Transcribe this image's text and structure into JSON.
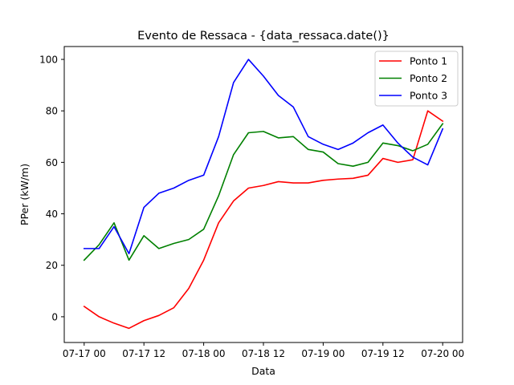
{
  "chart_data": {
    "type": "line",
    "title": "Evento de Ressaca - {data_ressaca.date()}",
    "xlabel": "Data",
    "ylabel": "PPer (kW/m)",
    "x_tick_labels": [
      "07-17 00",
      "07-17 12",
      "07-18 00",
      "07-18 12",
      "07-19 00",
      "07-19 12",
      "07-20 00"
    ],
    "y_ticks": [
      0,
      20,
      40,
      60,
      80,
      100
    ],
    "xlim": [
      "07-16 20",
      "07-20 04"
    ],
    "ylim": [
      -10,
      105
    ],
    "grid": false,
    "legend_position": "top-right",
    "x": [
      "07-17 00",
      "07-17 03",
      "07-17 06",
      "07-17 09",
      "07-17 12",
      "07-17 15",
      "07-17 18",
      "07-17 21",
      "07-18 00",
      "07-18 03",
      "07-18 06",
      "07-18 09",
      "07-18 12",
      "07-18 15",
      "07-18 18",
      "07-18 21",
      "07-19 00",
      "07-19 03",
      "07-19 06",
      "07-19 09",
      "07-19 12",
      "07-19 15",
      "07-19 18",
      "07-19 21",
      "07-20 00"
    ],
    "series": [
      {
        "name": "Ponto 1",
        "color": "#ff0000",
        "values": [
          4,
          0,
          -2.5,
          -4.5,
          -1.5,
          0.5,
          3.5,
          11,
          22,
          36.5,
          45,
          50,
          51,
          52.5,
          52,
          52,
          53,
          53.5,
          53.8,
          55,
          61.5,
          60,
          61,
          80,
          76
        ]
      },
      {
        "name": "Ponto 2",
        "color": "#008000",
        "values": [
          22,
          28,
          36.5,
          22,
          31.5,
          26.5,
          28.5,
          30,
          34,
          47,
          63,
          71.5,
          72,
          69.5,
          70,
          65,
          64,
          59.5,
          58.5,
          60,
          67.5,
          66.5,
          64.5,
          67,
          75
        ]
      },
      {
        "name": "Ponto 3",
        "color": "#0000ff",
        "values": [
          26.5,
          26.5,
          35,
          24.5,
          42.5,
          48,
          50,
          53,
          55,
          70,
          91,
          100,
          93.5,
          86,
          81.5,
          70,
          67,
          65,
          67.5,
          71.5,
          74.5,
          67.5,
          62,
          59,
          73
        ]
      }
    ]
  }
}
